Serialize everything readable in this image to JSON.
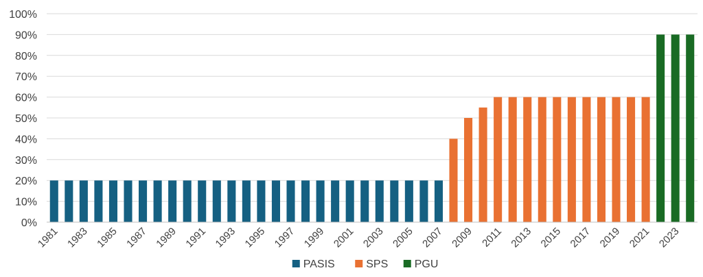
{
  "chart_data": {
    "type": "bar",
    "title": "",
    "xlabel": "",
    "ylabel": "",
    "ylim": [
      0,
      100
    ],
    "y_ticks": [
      "0%",
      "10%",
      "20%",
      "30%",
      "40%",
      "50%",
      "60%",
      "70%",
      "80%",
      "90%",
      "100%"
    ],
    "grid": "horizontal",
    "legend_position": "bottom",
    "x": [
      1981,
      1982,
      1983,
      1984,
      1985,
      1986,
      1987,
      1988,
      1989,
      1990,
      1991,
      1992,
      1993,
      1994,
      1995,
      1996,
      1997,
      1998,
      1999,
      2000,
      2001,
      2002,
      2003,
      2004,
      2005,
      2006,
      2007,
      2008,
      2009,
      2010,
      2011,
      2012,
      2013,
      2014,
      2015,
      2016,
      2017,
      2018,
      2019,
      2020,
      2021,
      2022,
      2023,
      2024
    ],
    "x_tick_labels": [
      "1981",
      "1983",
      "1985",
      "1987",
      "1989",
      "1991",
      "1993",
      "1995",
      "1997",
      "1999",
      "2001",
      "2003",
      "2005",
      "2007",
      "2009",
      "2011",
      "2013",
      "2015",
      "2017",
      "2019",
      "2021",
      "2023"
    ],
    "values": [
      20,
      20,
      20,
      20,
      20,
      20,
      20,
      20,
      20,
      20,
      20,
      20,
      20,
      20,
      20,
      20,
      20,
      20,
      20,
      20,
      20,
      20,
      20,
      20,
      20,
      20,
      20,
      40,
      50,
      55,
      60,
      60,
      60,
      60,
      60,
      60,
      60,
      60,
      60,
      60,
      60,
      90,
      90,
      90
    ],
    "series": [
      {
        "name": "PASIS",
        "color": "#156082",
        "x_range": [
          1981,
          2007
        ]
      },
      {
        "name": "SPS",
        "color": "#e97132",
        "x_range": [
          2008,
          2021
        ]
      },
      {
        "name": "PGU",
        "color": "#196b24",
        "x_range": [
          2022,
          2024
        ]
      }
    ]
  }
}
